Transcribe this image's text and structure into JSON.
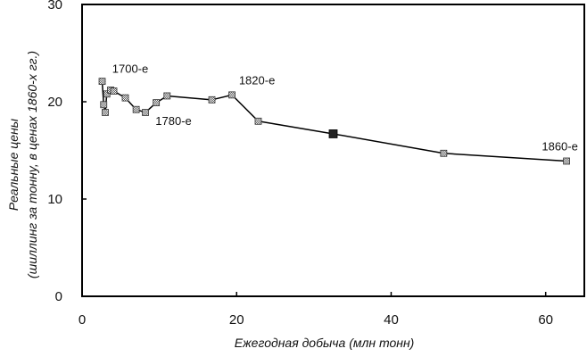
{
  "chart_data": {
    "type": "line",
    "xlabel": "Ежегодная добыча (млн тонн)",
    "ylabel_line1": "Реальные цены",
    "ylabel_line2": "(шиллинг за тонну, в ценах  1860-х гг.)",
    "xlim": [
      0,
      65
    ],
    "ylim": [
      0,
      30
    ],
    "xticks": [
      0,
      20,
      40,
      60
    ],
    "yticks": [
      0,
      10,
      20,
      30
    ],
    "series": [
      {
        "name": "Реальные цены",
        "points": [
          {
            "x": 2.6,
            "y": 22.1
          },
          {
            "x": 2.8,
            "y": 19.7
          },
          {
            "x": 3.0,
            "y": 18.9
          },
          {
            "x": 3.2,
            "y": 20.8
          },
          {
            "x": 3.7,
            "y": 21.2
          },
          {
            "x": 4.1,
            "y": 21.1
          },
          {
            "x": 5.6,
            "y": 20.4
          },
          {
            "x": 7.0,
            "y": 19.2
          },
          {
            "x": 8.2,
            "y": 18.9
          },
          {
            "x": 9.6,
            "y": 19.9
          },
          {
            "x": 11.0,
            "y": 20.6
          },
          {
            "x": 16.8,
            "y": 20.2
          },
          {
            "x": 19.4,
            "y": 20.7
          },
          {
            "x": 22.8,
            "y": 18.0
          },
          {
            "x": 32.5,
            "y": 16.7
          },
          {
            "x": 46.8,
            "y": 14.7
          },
          {
            "x": 62.7,
            "y": 13.9
          }
        ]
      }
    ],
    "highlight_point": {
      "x": 32.5,
      "y": 16.7
    },
    "annotations": [
      {
        "text": "1700-е",
        "x": 3.9,
        "y": 23.0
      },
      {
        "text": "1780-е",
        "x": 9.5,
        "y": 17.6
      },
      {
        "text": "1820-е",
        "x": 20.3,
        "y": 21.8
      },
      {
        "text": "1860-е",
        "x": 59.5,
        "y": 15.0
      }
    ]
  }
}
